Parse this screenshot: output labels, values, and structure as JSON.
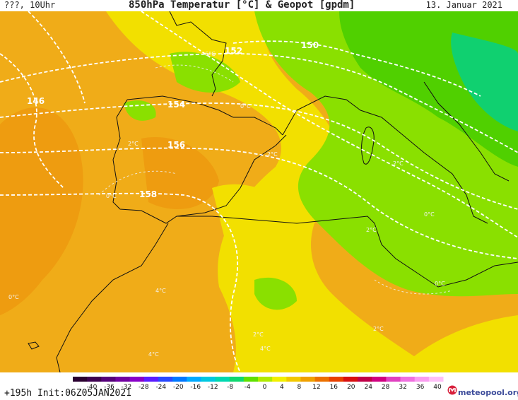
{
  "header": {
    "left": "???, 10Uhr",
    "title": "850hPa Temperatur [°C] & Geopot [gpdm]",
    "date": "13. Januar 2021"
  },
  "map": {
    "geopot_labels": [
      "146",
      "150",
      "152",
      "154",
      "156",
      "158"
    ],
    "temp_labels": [
      "6°C",
      "0°C",
      "2°C",
      "2°C",
      "2°C",
      "0°C",
      "4°C",
      "0°C",
      "4°C",
      "2°C",
      "4°C",
      "2°C",
      "0°C",
      "2°C",
      "0°C"
    ]
  },
  "colorbar": {
    "ticks": [
      "-40",
      "-36",
      "-32",
      "-28",
      "-24",
      "-20",
      "-16",
      "-12",
      "-8",
      "-4",
      "0",
      "4",
      "8",
      "12",
      "16",
      "20",
      "24",
      "28",
      "32",
      "36",
      "40"
    ],
    "colors": [
      "#2a0030",
      "#3d0050",
      "#55007a",
      "#7000a0",
      "#8800c8",
      "#5a1cff",
      "#2848ff",
      "#0078ff",
      "#00aaff",
      "#00c8e0",
      "#00d8b0",
      "#10d870",
      "#60e000",
      "#b0ea00",
      "#f2f000",
      "#f2c800",
      "#f0a000",
      "#ec7000",
      "#e84000",
      "#d81010",
      "#c00048",
      "#d00080",
      "#e040c0",
      "#f070e0",
      "#fa9cf0",
      "#ffc0f8"
    ]
  },
  "footer": {
    "run": "+195h Init:06Z05JAN2021",
    "brand": "meteopool.org"
  }
}
